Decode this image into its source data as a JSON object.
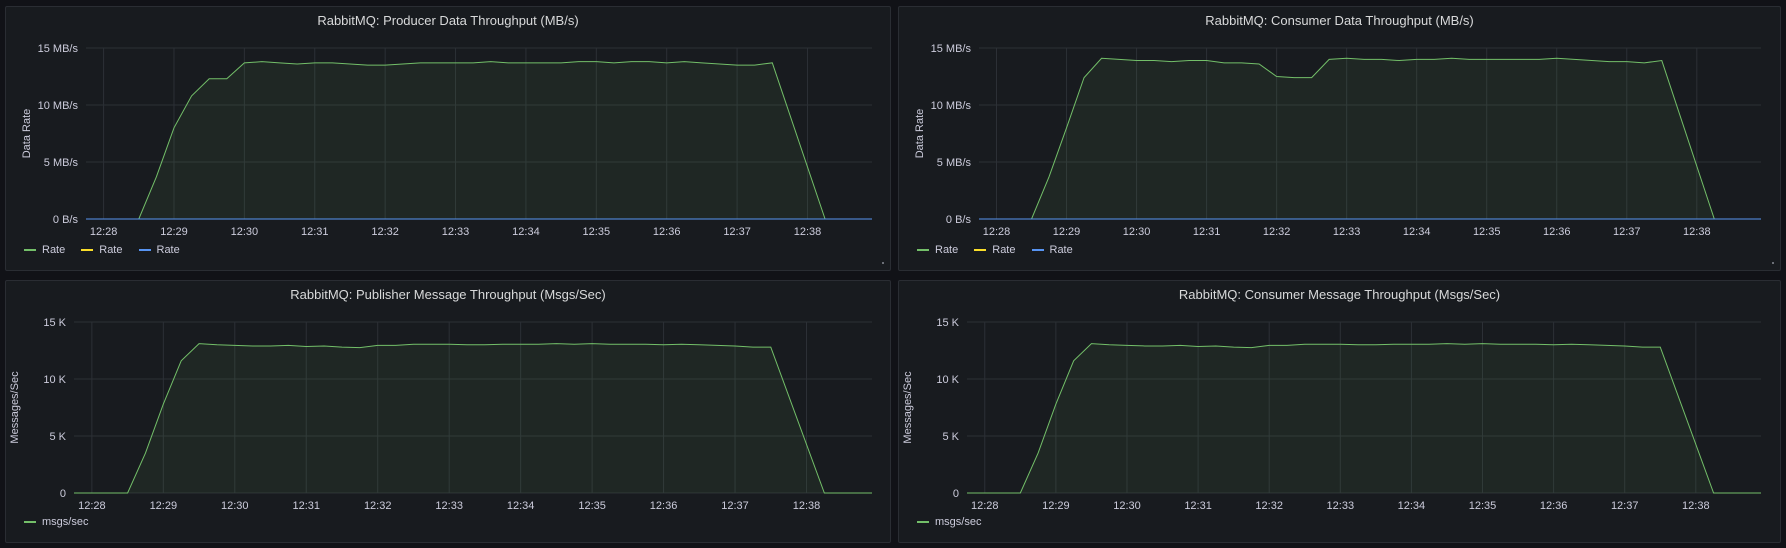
{
  "colors": {
    "background": "#111217",
    "panel": "#181b1f",
    "grid": "#2c3036",
    "text": "#ccccdc",
    "series_green": "#73bf69",
    "series_yellow": "#fade2a",
    "series_blue": "#5794f2"
  },
  "panels": [
    {
      "title": "RabbitMQ: Producer Data Throughput (MB/s)",
      "ylabel": "Data Rate",
      "yticks": [
        "0 B/s",
        "5 MB/s",
        "10 MB/s",
        "15 MB/s"
      ],
      "xticks": [
        "12:28",
        "12:29",
        "12:30",
        "12:31",
        "12:32",
        "12:33",
        "12:34",
        "12:35",
        "12:36",
        "12:37",
        "12:38"
      ],
      "legend": [
        {
          "label": "Rate",
          "color": "#73bf69"
        },
        {
          "label": "Rate",
          "color": "#fade2a"
        },
        {
          "label": "Rate",
          "color": "#5794f2"
        }
      ]
    },
    {
      "title": "RabbitMQ: Consumer Data Throughput (MB/s)",
      "ylabel": "Data Rate",
      "yticks": [
        "0 B/s",
        "5 MB/s",
        "10 MB/s",
        "15 MB/s"
      ],
      "xticks": [
        "12:28",
        "12:29",
        "12:30",
        "12:31",
        "12:32",
        "12:33",
        "12:34",
        "12:35",
        "12:36",
        "12:37",
        "12:38"
      ],
      "legend": [
        {
          "label": "Rate",
          "color": "#73bf69"
        },
        {
          "label": "Rate",
          "color": "#fade2a"
        },
        {
          "label": "Rate",
          "color": "#5794f2"
        }
      ]
    },
    {
      "title": "RabbitMQ: Publisher Message Throughput (Msgs/Sec)",
      "ylabel": "Messages/Sec",
      "yticks": [
        "0",
        "5 K",
        "10 K",
        "15 K"
      ],
      "xticks": [
        "12:28",
        "12:29",
        "12:30",
        "12:31",
        "12:32",
        "12:33",
        "12:34",
        "12:35",
        "12:36",
        "12:37",
        "12:38"
      ],
      "legend": [
        {
          "label": "msgs/sec",
          "color": "#73bf69"
        }
      ]
    },
    {
      "title": "RabbitMQ: Consumer Message Throughput (Msgs/Sec)",
      "ylabel": "Messages/Sec",
      "yticks": [
        "0",
        "5 K",
        "10 K",
        "15 K"
      ],
      "xticks": [
        "12:28",
        "12:29",
        "12:30",
        "12:31",
        "12:32",
        "12:33",
        "12:34",
        "12:35",
        "12:36",
        "12:37",
        "12:38"
      ],
      "legend": [
        {
          "label": "msgs/sec",
          "color": "#73bf69"
        }
      ]
    }
  ],
  "chart_data": [
    {
      "type": "area",
      "title": "RabbitMQ: Producer Data Throughput (MB/s)",
      "ylabel": "Data Rate",
      "xlabel": "",
      "ylim": [
        0,
        15
      ],
      "xlim": [
        "12:27:45",
        "12:38:55"
      ],
      "grid": true,
      "legend": "bottom-left",
      "series": [
        {
          "name": "Rate",
          "color": "#73bf69",
          "x": [
            "12:27:45",
            "12:28:30",
            "12:28:45",
            "12:29:00",
            "12:29:15",
            "12:29:30",
            "12:29:45",
            "12:30:00",
            "12:30:15",
            "12:30:30",
            "12:30:45",
            "12:31:00",
            "12:31:15",
            "12:31:30",
            "12:31:45",
            "12:32:00",
            "12:32:15",
            "12:32:30",
            "12:32:45",
            "12:33:00",
            "12:33:15",
            "12:33:30",
            "12:33:45",
            "12:34:00",
            "12:34:15",
            "12:34:30",
            "12:34:45",
            "12:35:00",
            "12:35:15",
            "12:35:30",
            "12:35:45",
            "12:36:00",
            "12:36:15",
            "12:36:30",
            "12:36:45",
            "12:37:00",
            "12:37:15",
            "12:37:30",
            "12:38:15",
            "12:38:55"
          ],
          "values": [
            0,
            0,
            3.7,
            8.0,
            10.8,
            12.3,
            12.3,
            13.7,
            13.8,
            13.7,
            13.6,
            13.7,
            13.7,
            13.6,
            13.5,
            13.5,
            13.6,
            13.7,
            13.7,
            13.7,
            13.7,
            13.8,
            13.7,
            13.7,
            13.7,
            13.7,
            13.8,
            13.8,
            13.7,
            13.8,
            13.8,
            13.7,
            13.8,
            13.7,
            13.6,
            13.5,
            13.5,
            13.7,
            0,
            0
          ]
        },
        {
          "name": "Rate",
          "color": "#fade2a",
          "x": [
            "12:27:45",
            "12:38:55"
          ],
          "values": [
            0,
            0
          ]
        },
        {
          "name": "Rate",
          "color": "#5794f2",
          "x": [
            "12:27:45",
            "12:38:55"
          ],
          "values": [
            0,
            0
          ]
        }
      ]
    },
    {
      "type": "area",
      "title": "RabbitMQ: Consumer Data Throughput (MB/s)",
      "ylabel": "Data Rate",
      "xlabel": "",
      "ylim": [
        0,
        15
      ],
      "xlim": [
        "12:27:45",
        "12:38:55"
      ],
      "grid": true,
      "legend": "bottom-left",
      "series": [
        {
          "name": "Rate",
          "color": "#73bf69",
          "x": [
            "12:27:45",
            "12:28:30",
            "12:28:45",
            "12:29:00",
            "12:29:15",
            "12:29:30",
            "12:29:45",
            "12:30:00",
            "12:30:15",
            "12:30:30",
            "12:30:45",
            "12:31:00",
            "12:31:15",
            "12:31:30",
            "12:31:45",
            "12:32:00",
            "12:32:15",
            "12:32:30",
            "12:32:45",
            "12:33:00",
            "12:33:15",
            "12:33:30",
            "12:33:45",
            "12:34:00",
            "12:34:15",
            "12:34:30",
            "12:34:45",
            "12:35:00",
            "12:35:15",
            "12:35:30",
            "12:35:45",
            "12:36:00",
            "12:36:15",
            "12:36:30",
            "12:36:45",
            "12:37:00",
            "12:37:15",
            "12:37:30",
            "12:38:15",
            "12:38:55"
          ],
          "values": [
            0,
            0,
            3.7,
            8.0,
            12.4,
            14.1,
            14.0,
            13.9,
            13.9,
            13.8,
            13.9,
            13.9,
            13.7,
            13.7,
            13.6,
            12.5,
            12.4,
            12.4,
            14.0,
            14.1,
            14.0,
            14.0,
            13.9,
            14.0,
            14.0,
            14.1,
            14.0,
            14.0,
            14.0,
            14.0,
            14.0,
            14.1,
            14.0,
            13.9,
            13.8,
            13.8,
            13.7,
            13.9,
            0,
            0
          ]
        },
        {
          "name": "Rate",
          "color": "#fade2a",
          "x": [
            "12:27:45",
            "12:38:55"
          ],
          "values": [
            0,
            0
          ]
        },
        {
          "name": "Rate",
          "color": "#5794f2",
          "x": [
            "12:27:45",
            "12:38:55"
          ],
          "values": [
            0,
            0
          ]
        }
      ]
    },
    {
      "type": "area",
      "title": "RabbitMQ: Publisher Message Throughput (Msgs/Sec)",
      "ylabel": "Messages/Sec",
      "xlabel": "",
      "ylim": [
        0,
        15000
      ],
      "xlim": [
        "12:27:45",
        "12:38:55"
      ],
      "grid": true,
      "legend": "bottom-left",
      "series": [
        {
          "name": "msgs/sec",
          "color": "#73bf69",
          "x": [
            "12:27:45",
            "12:28:30",
            "12:28:45",
            "12:29:00",
            "12:29:15",
            "12:29:30",
            "12:29:45",
            "12:30:00",
            "12:30:15",
            "12:30:30",
            "12:30:45",
            "12:31:00",
            "12:31:15",
            "12:31:30",
            "12:31:45",
            "12:32:00",
            "12:32:15",
            "12:32:30",
            "12:32:45",
            "12:33:00",
            "12:33:15",
            "12:33:30",
            "12:33:45",
            "12:34:00",
            "12:34:15",
            "12:34:30",
            "12:34:45",
            "12:35:00",
            "12:35:15",
            "12:35:30",
            "12:35:45",
            "12:36:00",
            "12:36:15",
            "12:36:30",
            "12:36:45",
            "12:37:00",
            "12:37:15",
            "12:37:30",
            "12:38:15",
            "12:38:30",
            "12:38:55"
          ],
          "values": [
            0,
            0,
            3500,
            7800,
            11600,
            13100,
            13000,
            12950,
            12900,
            12900,
            12950,
            12850,
            12900,
            12800,
            12750,
            12950,
            12950,
            13050,
            13050,
            13050,
            13000,
            13000,
            13050,
            13050,
            13050,
            13100,
            13050,
            13100,
            13050,
            13050,
            13050,
            13000,
            13050,
            13000,
            12950,
            12900,
            12800,
            12800,
            0,
            0,
            0
          ]
        }
      ]
    },
    {
      "type": "area",
      "title": "RabbitMQ: Consumer Message Throughput (Msgs/Sec)",
      "ylabel": "Messages/Sec",
      "xlabel": "",
      "ylim": [
        0,
        15000
      ],
      "xlim": [
        "12:27:45",
        "12:38:55"
      ],
      "grid": true,
      "legend": "bottom-left",
      "series": [
        {
          "name": "msgs/sec",
          "color": "#73bf69",
          "x": [
            "12:27:45",
            "12:28:30",
            "12:28:45",
            "12:29:00",
            "12:29:15",
            "12:29:30",
            "12:29:45",
            "12:30:00",
            "12:30:15",
            "12:30:30",
            "12:30:45",
            "12:31:00",
            "12:31:15",
            "12:31:30",
            "12:31:45",
            "12:32:00",
            "12:32:15",
            "12:32:30",
            "12:32:45",
            "12:33:00",
            "12:33:15",
            "12:33:30",
            "12:33:45",
            "12:34:00",
            "12:34:15",
            "12:34:30",
            "12:34:45",
            "12:35:00",
            "12:35:15",
            "12:35:30",
            "12:35:45",
            "12:36:00",
            "12:36:15",
            "12:36:30",
            "12:36:45",
            "12:37:00",
            "12:37:15",
            "12:37:30",
            "12:38:15",
            "12:38:30",
            "12:38:55"
          ],
          "values": [
            0,
            0,
            3500,
            7800,
            11600,
            13100,
            13000,
            12950,
            12900,
            12900,
            12950,
            12850,
            12900,
            12800,
            12750,
            12950,
            12950,
            13050,
            13050,
            13050,
            13000,
            13000,
            13050,
            13050,
            13050,
            13100,
            13050,
            13100,
            13050,
            13050,
            13050,
            13000,
            13050,
            13000,
            12950,
            12900,
            12800,
            12800,
            0,
            0,
            0
          ]
        }
      ]
    }
  ]
}
